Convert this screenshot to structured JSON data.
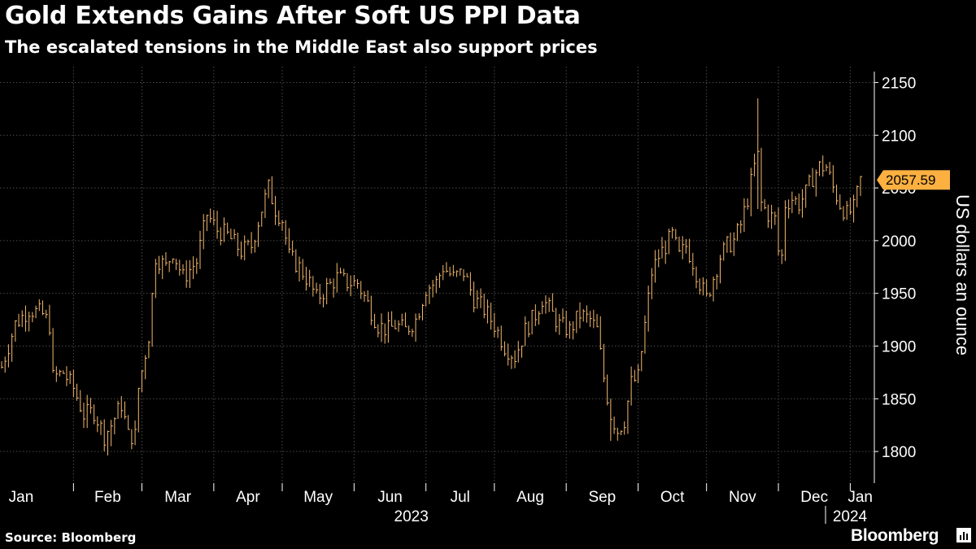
{
  "header": {
    "title": "Gold Extends Gains After Soft US PPI Data",
    "subtitle": "The escalated tensions in the Middle East also support prices"
  },
  "footer": {
    "source": "Source: Bloomberg",
    "brand": "Bloomberg"
  },
  "colors": {
    "background": "#000000",
    "series": "#f5b96e",
    "label_fill": "#fbb040",
    "grid": "#4a4a4a",
    "text": "#ffffff"
  },
  "chart_data": {
    "type": "ohlc-bar",
    "title": "Gold Extends Gains After Soft US PPI Data",
    "subtitle": "The escalated tensions in the Middle East also support prices",
    "ylabel": "US dollars an ounce",
    "ylim": [
      1770,
      2165
    ],
    "yticks": [
      1800,
      1850,
      1900,
      1950,
      2000,
      2050,
      2100,
      2150
    ],
    "xlim": [
      0,
      251
    ],
    "x_ticks": [
      {
        "label": "Jan",
        "pos": 0
      },
      {
        "label": "Feb",
        "pos": 21
      },
      {
        "label": "Mar",
        "pos": 41
      },
      {
        "label": "Apr",
        "pos": 62
      },
      {
        "label": "May",
        "pos": 82
      },
      {
        "label": "Jun",
        "pos": 103
      },
      {
        "label": "Jul",
        "pos": 124
      },
      {
        "label": "Aug",
        "pos": 144
      },
      {
        "label": "Sep",
        "pos": 165
      },
      {
        "label": "Oct",
        "pos": 186
      },
      {
        "label": "Nov",
        "pos": 206
      },
      {
        "label": "Dec",
        "pos": 227
      },
      {
        "label": "Jan",
        "pos": 248
      }
    ],
    "year_labels": [
      {
        "label": "2023",
        "pos": 124
      },
      {
        "label": "2024",
        "pos": 245
      }
    ],
    "grid": true,
    "last_value": 2057.59,
    "last_value_label": "2057.59",
    "source": "Source: Bloomberg",
    "series": [
      {
        "name": "Gold spot price",
        "points": [
          {
            "x": 0,
            "y": 1880
          },
          {
            "x": 4,
            "y": 1921
          },
          {
            "x": 8,
            "y": 1935
          },
          {
            "x": 12,
            "y": 1930
          },
          {
            "x": 14,
            "y": 1920
          },
          {
            "x": 15,
            "y": 1870
          },
          {
            "x": 18,
            "y": 1875
          },
          {
            "x": 21,
            "y": 1860
          },
          {
            "x": 24,
            "y": 1835
          },
          {
            "x": 27,
            "y": 1838
          },
          {
            "x": 30,
            "y": 1815
          },
          {
            "x": 32,
            "y": 1825
          },
          {
            "x": 35,
            "y": 1845
          },
          {
            "x": 37,
            "y": 1815
          },
          {
            "x": 39,
            "y": 1815
          },
          {
            "x": 40,
            "y": 1860
          },
          {
            "x": 43,
            "y": 1910
          },
          {
            "x": 45,
            "y": 1985
          },
          {
            "x": 48,
            "y": 1975
          },
          {
            "x": 50,
            "y": 1990
          },
          {
            "x": 53,
            "y": 1965
          },
          {
            "x": 57,
            "y": 1980
          },
          {
            "x": 60,
            "y": 2025
          },
          {
            "x": 63,
            "y": 2010
          },
          {
            "x": 66,
            "y": 2005
          },
          {
            "x": 70,
            "y": 1990
          },
          {
            "x": 73,
            "y": 1995
          },
          {
            "x": 76,
            "y": 2030
          },
          {
            "x": 78,
            "y": 2050
          },
          {
            "x": 80,
            "y": 2030
          },
          {
            "x": 82,
            "y": 2020
          },
          {
            "x": 84,
            "y": 1985
          },
          {
            "x": 87,
            "y": 1975
          },
          {
            "x": 90,
            "y": 1960
          },
          {
            "x": 92,
            "y": 1945
          },
          {
            "x": 95,
            "y": 1955
          },
          {
            "x": 98,
            "y": 1965
          },
          {
            "x": 101,
            "y": 1960
          },
          {
            "x": 104,
            "y": 1960
          },
          {
            "x": 107,
            "y": 1940
          },
          {
            "x": 110,
            "y": 1920
          },
          {
            "x": 113,
            "y": 1915
          },
          {
            "x": 115,
            "y": 1920
          },
          {
            "x": 118,
            "y": 1915
          },
          {
            "x": 121,
            "y": 1925
          },
          {
            "x": 124,
            "y": 1955
          },
          {
            "x": 127,
            "y": 1960
          },
          {
            "x": 129,
            "y": 1975
          },
          {
            "x": 132,
            "y": 1965
          },
          {
            "x": 135,
            "y": 1970
          },
          {
            "x": 138,
            "y": 1945
          },
          {
            "x": 141,
            "y": 1935
          },
          {
            "x": 144,
            "y": 1920
          },
          {
            "x": 147,
            "y": 1900
          },
          {
            "x": 150,
            "y": 1890
          },
          {
            "x": 153,
            "y": 1915
          },
          {
            "x": 156,
            "y": 1930
          },
          {
            "x": 158,
            "y": 1945
          },
          {
            "x": 161,
            "y": 1930
          },
          {
            "x": 163,
            "y": 1920
          },
          {
            "x": 166,
            "y": 1915
          },
          {
            "x": 169,
            "y": 1930
          },
          {
            "x": 172,
            "y": 1925
          },
          {
            "x": 174,
            "y": 1915
          },
          {
            "x": 176,
            "y": 1870
          },
          {
            "x": 178,
            "y": 1835
          },
          {
            "x": 180,
            "y": 1820
          },
          {
            "x": 182,
            "y": 1830
          },
          {
            "x": 184,
            "y": 1865
          },
          {
            "x": 186,
            "y": 1870
          },
          {
            "x": 188,
            "y": 1920
          },
          {
            "x": 190,
            "y": 1970
          },
          {
            "x": 192,
            "y": 1985
          },
          {
            "x": 194,
            "y": 1995
          },
          {
            "x": 196,
            "y": 2005
          },
          {
            "x": 198,
            "y": 1985
          },
          {
            "x": 200,
            "y": 1995
          },
          {
            "x": 202,
            "y": 1980
          },
          {
            "x": 204,
            "y": 1960
          },
          {
            "x": 206,
            "y": 1945
          },
          {
            "x": 208,
            "y": 1965
          },
          {
            "x": 210,
            "y": 1985
          },
          {
            "x": 212,
            "y": 1995
          },
          {
            "x": 214,
            "y": 2000
          },
          {
            "x": 216,
            "y": 2015
          },
          {
            "x": 218,
            "y": 2040
          },
          {
            "x": 220,
            "y": 2070
          },
          {
            "x": 221,
            "y": 2080
          },
          {
            "x": 222,
            "y": 2035
          },
          {
            "x": 224,
            "y": 2025
          },
          {
            "x": 226,
            "y": 2020
          },
          {
            "x": 227,
            "y": 1990
          },
          {
            "x": 228,
            "y": 1985
          },
          {
            "x": 229,
            "y": 2035
          },
          {
            "x": 231,
            "y": 2040
          },
          {
            "x": 233,
            "y": 2035
          },
          {
            "x": 235,
            "y": 2045
          },
          {
            "x": 237,
            "y": 2060
          },
          {
            "x": 239,
            "y": 2070
          },
          {
            "x": 241,
            "y": 2070
          },
          {
            "x": 243,
            "y": 2050
          },
          {
            "x": 245,
            "y": 2035
          },
          {
            "x": 247,
            "y": 2025
          },
          {
            "x": 249,
            "y": 2030
          },
          {
            "x": 251,
            "y": 2057.59
          }
        ],
        "spikes": [
          {
            "x": 221,
            "high": 2135,
            "low": 2030
          },
          {
            "x": 178,
            "high": 1850,
            "low": 1810
          },
          {
            "x": 32,
            "high": 1830,
            "low": 1805
          }
        ]
      }
    ]
  }
}
